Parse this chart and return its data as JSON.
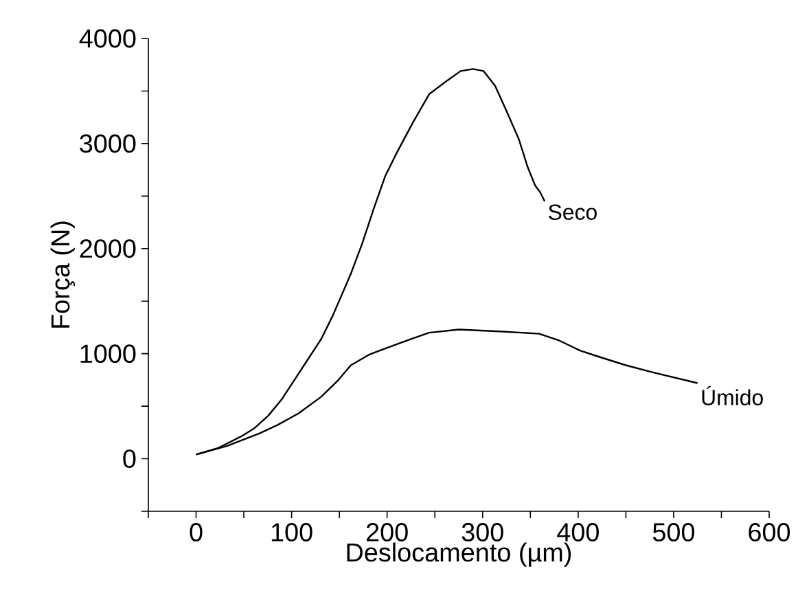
{
  "chart_data": {
    "type": "line",
    "xlabel": "Deslocamento (µm)",
    "ylabel": "Força (N)",
    "xlim": [
      -50,
      600
    ],
    "ylim": [
      -500,
      4000
    ],
    "xticks": [
      {
        "value": -50,
        "label": null
      },
      0,
      {
        "value": 50,
        "label": null
      },
      100,
      {
        "value": 150,
        "label": null
      },
      200,
      {
        "value": 250,
        "label": null
      },
      300,
      {
        "value": 350,
        "label": null
      },
      400,
      {
        "value": 450,
        "label": null
      },
      500,
      {
        "value": 550,
        "label": null
      },
      600
    ],
    "yticks": [
      {
        "value": -500,
        "label": null
      },
      0,
      {
        "value": 500,
        "label": null
      },
      1000,
      {
        "value": 1500,
        "label": null
      },
      2000,
      {
        "value": 2500,
        "label": null
      },
      3000,
      {
        "value": 3500,
        "label": null
      },
      4000
    ],
    "grid": false,
    "legend": false,
    "marker": "none",
    "line_style": "solid",
    "series": [
      {
        "name": "Seco",
        "color": "#000000",
        "x": [
          0,
          22.6,
          46.7,
          61,
          75.6,
          90,
          104.4,
          118.8,
          131,
          143,
          162,
          174,
          186,
          198,
          210,
          227,
          244,
          263,
          277,
          290,
          301,
          313,
          325,
          338,
          347,
          355,
          360,
          365
        ],
        "values": [
          40,
          100,
          210,
          290,
          410,
          570,
          770,
          970,
          1140,
          1360,
          1760,
          2050,
          2380,
          2690,
          2910,
          3200,
          3470,
          3600,
          3690,
          3710,
          3690,
          3550,
          3310,
          3040,
          2780,
          2600,
          2540,
          2450
        ]
      },
      {
        "name": "Úmido",
        "color": "#000000",
        "x": [
          0,
          32,
          66,
          85,
          107,
          131,
          148,
          162,
          181,
          198,
          225,
          244,
          275,
          321,
          359,
          379,
          402,
          422,
          450,
          479,
          525
        ],
        "values": [
          40,
          120,
          240,
          320,
          430,
          590,
          740,
          890,
          990,
          1050,
          1140,
          1200,
          1230,
          1210,
          1190,
          1130,
          1030,
          970,
          890,
          820,
          720
        ]
      }
    ]
  }
}
